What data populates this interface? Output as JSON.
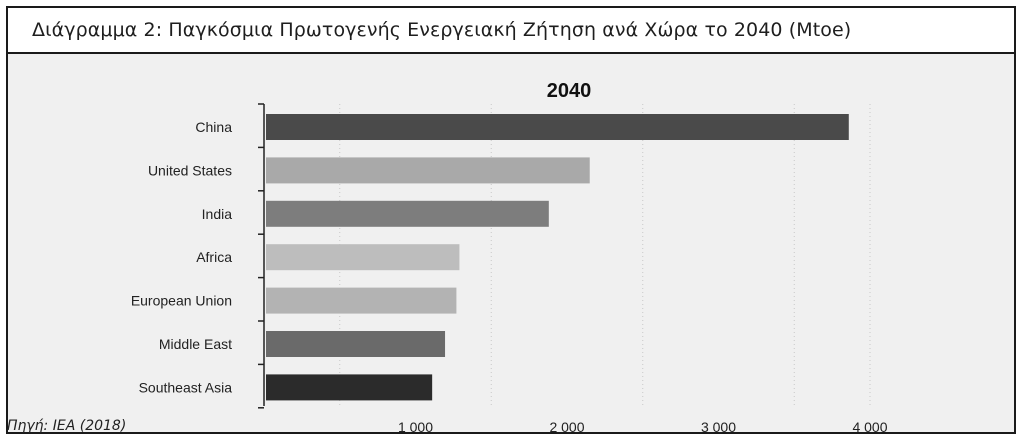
{
  "header": {
    "title": "Διάγραμμα 2: Παγκόσμια Πρωτογενής Ενεργειακή Ζήτηση ανά Χώρα το 2040 (Mtoe)"
  },
  "source": "Πηγή: IEA (2018)",
  "chart_data": {
    "type": "bar",
    "orientation": "horizontal",
    "title": "2040",
    "categories": [
      "China",
      "United States",
      "India",
      "Africa",
      "European Union",
      "Middle East",
      "Southeast Asia"
    ],
    "values": [
      3860,
      2150,
      1880,
      1290,
      1270,
      1195,
      1110
    ],
    "bar_colors": [
      "#4a4a4a",
      "#a9a9a9",
      "#7d7d7d",
      "#bdbdbd",
      "#b3b3b3",
      "#6a6a6a",
      "#2b2b2b"
    ],
    "xlim": [
      0,
      4400
    ],
    "ticks": [
      1000,
      2000,
      3000,
      4000
    ],
    "tick_labels": [
      "1 000",
      "2 000",
      "3 000",
      "4 000"
    ],
    "grid_lines": [
      500,
      1500,
      2500,
      3500,
      4000
    ],
    "grid": true,
    "legend": false
  }
}
